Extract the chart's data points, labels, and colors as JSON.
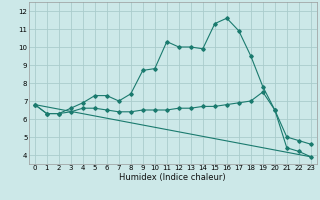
{
  "xlabel": "Humidex (Indice chaleur)",
  "bg_color": "#cce8e8",
  "grid_color": "#aacccc",
  "line_color": "#1a7a6e",
  "xlim": [
    -0.5,
    23.5
  ],
  "ylim": [
    3.5,
    12.5
  ],
  "xticks": [
    0,
    1,
    2,
    3,
    4,
    5,
    6,
    7,
    8,
    9,
    10,
    11,
    12,
    13,
    14,
    15,
    16,
    17,
    18,
    19,
    20,
    21,
    22,
    23
  ],
  "yticks": [
    4,
    5,
    6,
    7,
    8,
    9,
    10,
    11,
    12
  ],
  "line1_x": [
    0,
    1,
    2,
    3,
    4,
    5,
    6,
    7,
    8,
    9,
    10,
    11,
    12,
    13,
    14,
    15,
    16,
    17,
    18,
    19,
    20,
    21,
    22,
    23
  ],
  "line1_y": [
    6.8,
    6.3,
    6.3,
    6.6,
    6.9,
    7.3,
    7.3,
    7.0,
    7.4,
    8.7,
    8.8,
    10.3,
    10.0,
    10.0,
    9.9,
    11.3,
    11.6,
    10.9,
    9.5,
    7.8,
    6.5,
    4.4,
    4.2,
    3.9
  ],
  "line2_x": [
    0,
    1,
    2,
    3,
    4,
    5,
    6,
    7,
    8,
    9,
    10,
    11,
    12,
    13,
    14,
    15,
    16,
    17,
    18,
    19,
    20,
    21,
    22,
    23
  ],
  "line2_y": [
    6.8,
    6.3,
    6.3,
    6.4,
    6.6,
    6.6,
    6.5,
    6.4,
    6.4,
    6.5,
    6.5,
    6.5,
    6.6,
    6.6,
    6.7,
    6.7,
    6.8,
    6.9,
    7.0,
    7.5,
    6.5,
    5.0,
    4.8,
    4.6
  ],
  "line3_x": [
    0,
    23
  ],
  "line3_y": [
    6.8,
    3.9
  ],
  "xlabel_fontsize": 6.0,
  "tick_fontsize": 5.0
}
